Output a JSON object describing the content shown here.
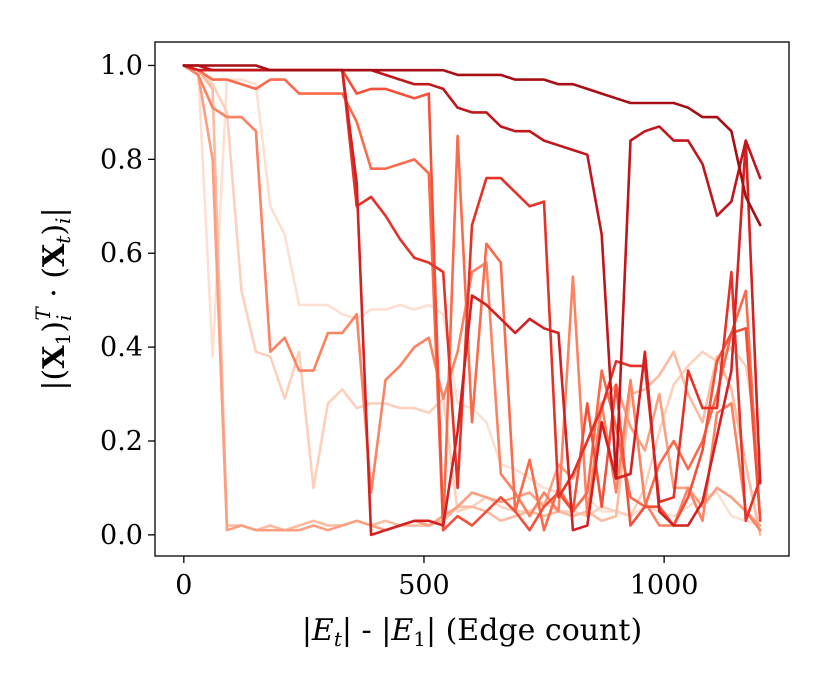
{
  "chart_data": {
    "type": "line",
    "xlabel": "|E_t| - |E_1| (Edge count)",
    "ylabel": "|(X_1)_i^T · (X_t)_i|",
    "xlim": [
      -60,
      1260
    ],
    "ylim": [
      -0.045,
      1.05
    ],
    "xticks": [
      0,
      500,
      1000
    ],
    "xtick_labels": [
      "0",
      "500",
      "1000"
    ],
    "yticks": [
      0.0,
      0.2,
      0.4,
      0.6,
      0.8,
      1.0
    ],
    "ytick_labels": [
      "0.0",
      "0.2",
      "0.4",
      "0.6",
      "0.8",
      "1.0"
    ],
    "grid": false,
    "legend": "none",
    "colormap": "Reds",
    "x": [
      0,
      30,
      60,
      90,
      120,
      150,
      180,
      210,
      240,
      270,
      300,
      330,
      360,
      390,
      420,
      450,
      480,
      510,
      540,
      570,
      600,
      630,
      660,
      690,
      720,
      750,
      780,
      810,
      840,
      870,
      900,
      930,
      960,
      990,
      1020,
      1050,
      1080,
      1110,
      1140,
      1170,
      1200
    ],
    "series": [
      {
        "color": "#fee0d2",
        "values": [
          1.0,
          0.99,
          0.38,
          0.97,
          0.97,
          0.96,
          0.7,
          0.64,
          0.49,
          0.49,
          0.49,
          0.47,
          0.46,
          0.48,
          0.48,
          0.49,
          0.48,
          0.49,
          0.47,
          0.28,
          0.27,
          0.24,
          0.15,
          0.14,
          0.12,
          0.1,
          0.09,
          0.06,
          0.08,
          0.05,
          0.05,
          0.04,
          0.06,
          0.05,
          0.04,
          0.06,
          0.08,
          0.09,
          0.04,
          0.03,
          0.02
        ]
      },
      {
        "color": "#fdd0bc",
        "values": [
          1.0,
          0.99,
          0.96,
          0.9,
          0.52,
          0.39,
          0.38,
          0.29,
          0.39,
          0.1,
          0.28,
          0.31,
          0.27,
          0.28,
          0.28,
          0.27,
          0.27,
          0.26,
          0.29,
          0.05,
          0.06,
          0.08,
          0.06,
          0.05,
          0.05,
          0.07,
          0.05,
          0.05,
          0.04,
          0.06,
          0.05,
          0.04,
          0.1,
          0.22,
          0.32,
          0.36,
          0.39,
          0.37,
          0.4,
          0.36,
          0.17
        ]
      },
      {
        "color": "#fcbba1",
        "values": [
          1.0,
          0.99,
          0.95,
          0.02,
          0.02,
          0.01,
          0.02,
          0.01,
          0.02,
          0.03,
          0.02,
          0.02,
          0.03,
          0.02,
          0.03,
          0.02,
          0.02,
          0.02,
          0.03,
          0.06,
          0.06,
          0.05,
          0.03,
          0.04,
          0.05,
          0.04,
          0.05,
          0.04,
          0.05,
          0.03,
          0.04,
          0.3,
          0.31,
          0.34,
          0.39,
          0.3,
          0.24,
          0.38,
          0.31,
          0.15,
          0.0
        ]
      },
      {
        "color": "#fc9f81",
        "values": [
          1.0,
          0.98,
          0.8,
          0.01,
          0.02,
          0.01,
          0.01,
          0.01,
          0.01,
          0.02,
          0.01,
          0.02,
          0.03,
          0.02,
          0.01,
          0.02,
          0.03,
          0.02,
          0.04,
          0.06,
          0.09,
          0.08,
          0.07,
          0.08,
          0.09,
          0.06,
          0.15,
          0.12,
          0.2,
          0.28,
          0.32,
          0.23,
          0.18,
          0.3,
          0.1,
          0.1,
          0.06,
          0.1,
          0.08,
          0.05,
          0.02
        ]
      },
      {
        "color": "#fc8262",
        "values": [
          1.0,
          0.98,
          0.91,
          0.89,
          0.89,
          0.86,
          0.39,
          0.42,
          0.35,
          0.35,
          0.43,
          0.43,
          0.47,
          0.09,
          0.33,
          0.36,
          0.4,
          0.42,
          0.29,
          0.39,
          0.56,
          0.58,
          0.13,
          0.09,
          0.04,
          0.09,
          0.05,
          0.55,
          0.04,
          0.28,
          0.09,
          0.33,
          0.07,
          0.02,
          0.02,
          0.1,
          0.03,
          0.26,
          0.28,
          0.05,
          0.01
        ]
      },
      {
        "color": "#fb6a4a",
        "values": [
          1.0,
          0.99,
          0.97,
          0.97,
          0.96,
          0.95,
          0.97,
          0.97,
          0.94,
          0.94,
          0.94,
          0.94,
          0.88,
          0.78,
          0.78,
          0.79,
          0.8,
          0.77,
          0.01,
          0.85,
          0.24,
          0.62,
          0.58,
          0.05,
          0.16,
          0.01,
          0.1,
          0.05,
          0.09,
          0.35,
          0.23,
          0.08,
          0.06,
          0.15,
          0.2,
          0.14,
          0.2,
          0.3,
          0.43,
          0.52,
          0.03
        ]
      },
      {
        "color": "#f44f39",
        "values": [
          1.0,
          0.99,
          0.99,
          0.99,
          0.99,
          0.99,
          0.99,
          0.99,
          0.99,
          0.99,
          0.99,
          0.99,
          0.94,
          0.95,
          0.95,
          0.94,
          0.93,
          0.94,
          0.01,
          0.04,
          0.02,
          0.05,
          0.08,
          0.05,
          0.01,
          0.06,
          0.09,
          0.05,
          0.28,
          0.06,
          0.32,
          0.02,
          0.06,
          0.06,
          0.02,
          0.08,
          0.18,
          0.37,
          0.43,
          0.44,
          0.03
        ]
      },
      {
        "color": "#e53228",
        "values": [
          1.0,
          0.99,
          0.99,
          0.99,
          0.99,
          0.99,
          0.99,
          0.99,
          0.99,
          0.99,
          0.99,
          0.99,
          0.7,
          0.72,
          0.68,
          0.63,
          0.59,
          0.58,
          0.56,
          0.1,
          0.66,
          0.76,
          0.76,
          0.73,
          0.7,
          0.71,
          0.08,
          0.13,
          0.2,
          0.27,
          0.37,
          0.36,
          0.36,
          0.07,
          0.08,
          0.35,
          0.27,
          0.27,
          0.56,
          0.03,
          0.12
        ]
      },
      {
        "color": "#d42020",
        "values": [
          1.0,
          0.99,
          0.99,
          0.99,
          0.99,
          0.99,
          0.99,
          0.99,
          0.99,
          0.99,
          0.99,
          0.99,
          0.75,
          0.0,
          0.01,
          0.02,
          0.03,
          0.03,
          0.02,
          0.22,
          0.51,
          0.49,
          0.46,
          0.43,
          0.46,
          0.44,
          0.43,
          0.01,
          0.02,
          0.24,
          0.12,
          0.13,
          0.39,
          0.05,
          0.02,
          0.02,
          0.07,
          0.21,
          0.35,
          0.84,
          0.11
        ]
      },
      {
        "color": "#c0161c",
        "values": [
          1.0,
          1.0,
          0.99,
          0.99,
          0.99,
          0.99,
          0.99,
          0.99,
          0.99,
          0.99,
          0.99,
          0.99,
          0.99,
          0.99,
          0.98,
          0.97,
          0.96,
          0.96,
          0.95,
          0.91,
          0.9,
          0.9,
          0.87,
          0.86,
          0.86,
          0.84,
          0.83,
          0.82,
          0.81,
          0.64,
          0.12,
          0.84,
          0.86,
          0.87,
          0.84,
          0.84,
          0.79,
          0.68,
          0.71,
          0.84,
          0.76
        ]
      },
      {
        "color": "#a50f15",
        "values": [
          1.0,
          1.0,
          1.0,
          1.0,
          1.0,
          1.0,
          0.99,
          0.99,
          0.99,
          0.99,
          0.99,
          0.99,
          0.99,
          0.99,
          0.99,
          0.99,
          0.99,
          0.99,
          0.99,
          0.98,
          0.98,
          0.98,
          0.98,
          0.97,
          0.97,
          0.97,
          0.96,
          0.96,
          0.95,
          0.94,
          0.93,
          0.92,
          0.92,
          0.92,
          0.92,
          0.91,
          0.89,
          0.89,
          0.86,
          0.72,
          0.66
        ]
      }
    ]
  }
}
